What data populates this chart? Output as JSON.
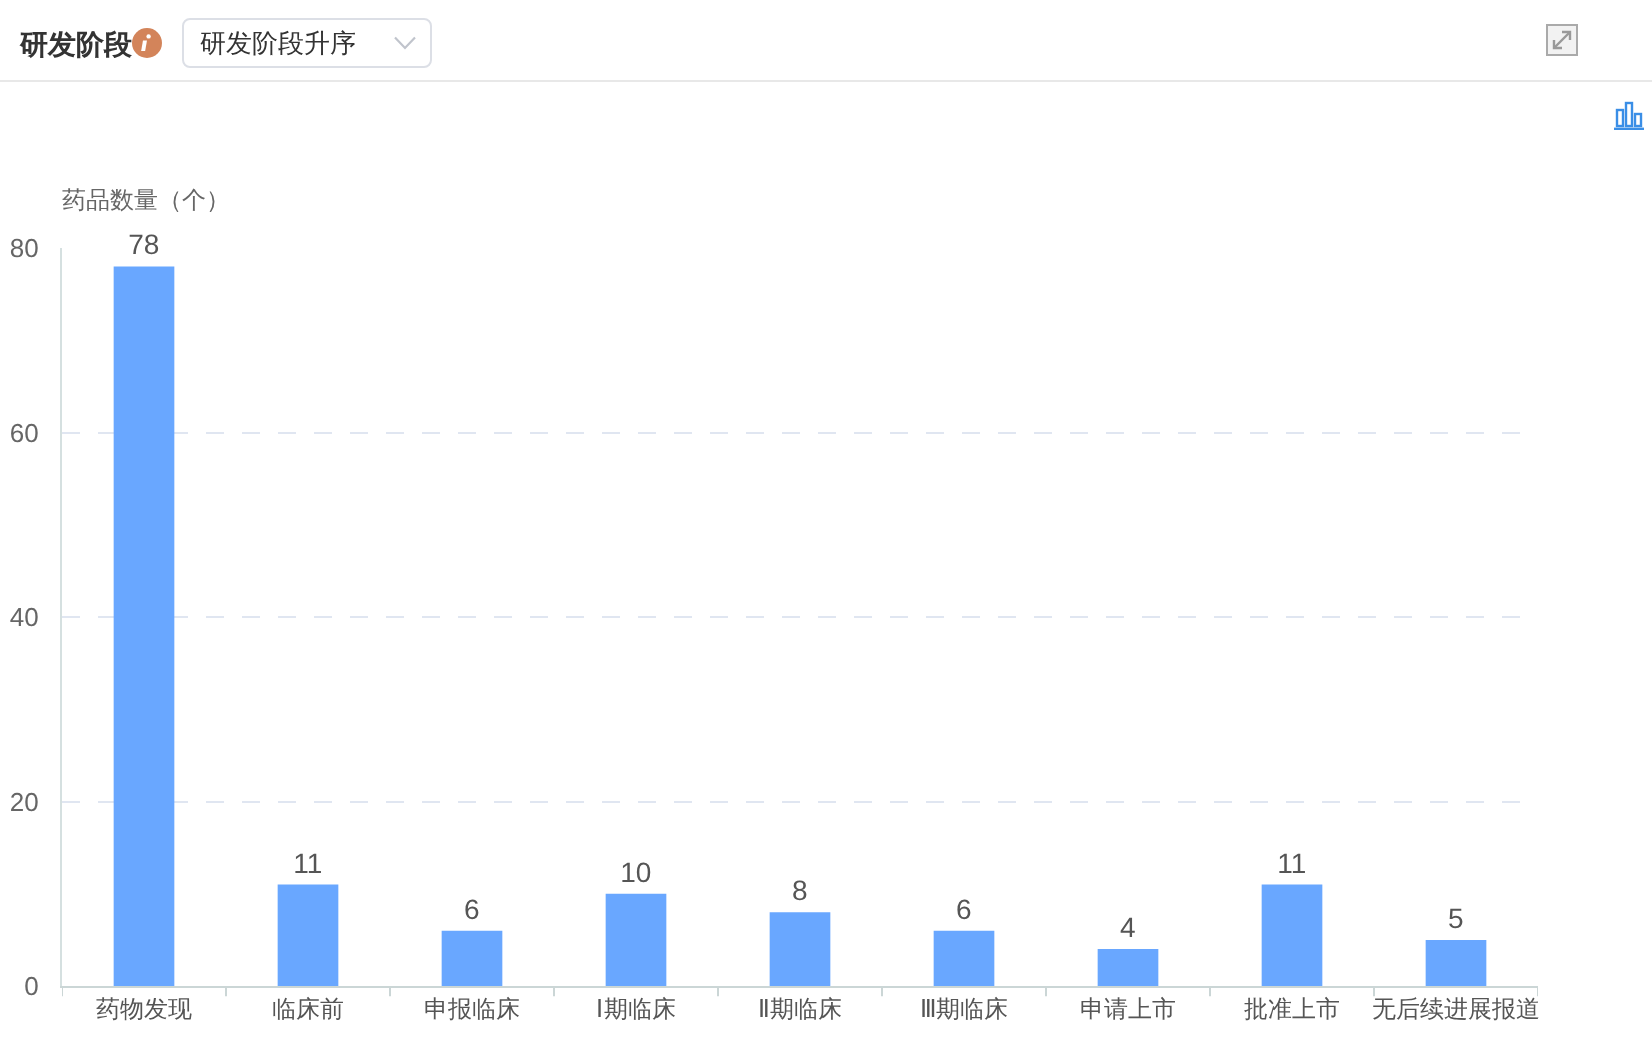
{
  "chart_data": {
    "type": "bar",
    "title": "研发阶段",
    "annotations": [
      "研发阶段升序"
    ],
    "ylabel": "药品数量（个）",
    "categories": [
      "药物发现",
      "临床前",
      "申报临床",
      "Ⅰ期临床",
      "Ⅱ期临床",
      "Ⅲ期临床",
      "申请上市",
      "批准上市",
      "无后续进展报道"
    ],
    "values": [
      78,
      11,
      6,
      10,
      8,
      6,
      4,
      11,
      5
    ],
    "color": "#69a7ff",
    "ylim": [
      0,
      80
    ],
    "yticks": [
      0,
      20,
      40,
      60,
      80
    ],
    "grid": "y",
    "data_labels": true
  }
}
